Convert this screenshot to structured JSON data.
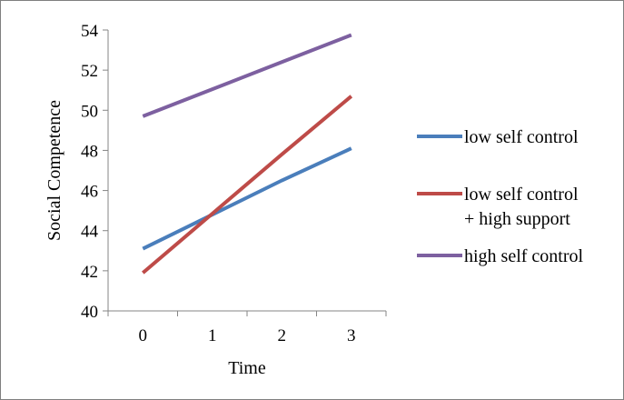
{
  "chart_data": {
    "type": "line",
    "title": "",
    "xlabel": "Time",
    "ylabel": "Social Competence",
    "x": [
      0,
      1,
      2,
      3
    ],
    "xlim": [
      0,
      3
    ],
    "ylim": [
      40,
      54
    ],
    "yticks": [
      40,
      42,
      44,
      46,
      48,
      50,
      52,
      54
    ],
    "grid": false,
    "legend_position": "right",
    "series": [
      {
        "name": "low self control",
        "color": "#4a7ebb",
        "values": [
          43.1,
          44.8,
          46.5,
          48.1
        ]
      },
      {
        "name": "low self control\n+ high support",
        "name_lines": [
          "low self control",
          "+ high support"
        ],
        "color": "#be4b48",
        "values": [
          41.9,
          44.85,
          47.8,
          50.7
        ]
      },
      {
        "name": "high self control",
        "color": "#7d60a0",
        "values": [
          49.7,
          51.05,
          52.4,
          53.75
        ]
      }
    ]
  }
}
